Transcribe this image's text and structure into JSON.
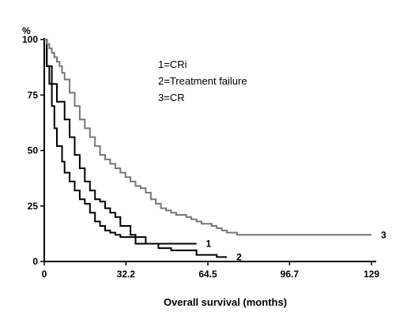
{
  "chart_data": {
    "type": "line",
    "title": "",
    "xlabel": "Overall survival (months)",
    "ylabel": "%",
    "xlim": [
      0,
      129
    ],
    "ylim": [
      0,
      100
    ],
    "x_ticks": [
      0,
      32.2,
      64.5,
      96.7,
      129
    ],
    "x_tick_labels": [
      "0",
      "32.2",
      "64.5",
      "96.7",
      "129"
    ],
    "y_ticks": [
      0,
      25,
      50,
      75,
      100
    ],
    "y_tick_labels": [
      "0",
      "25",
      "50",
      "75",
      "100"
    ],
    "grid": false,
    "legend_position": "top-right",
    "legend": [
      "1=CRi",
      "2=Treatment failure",
      "3=CR"
    ],
    "series": [
      {
        "name": "1",
        "label": "1",
        "color": "#000000",
        "x": [
          0,
          1,
          2,
          3,
          4,
          5,
          7,
          8,
          10,
          12,
          14,
          16,
          18,
          20,
          22,
          24,
          26,
          28,
          30,
          32,
          36,
          40,
          45,
          50,
          55,
          60
        ],
        "y": [
          100,
          88,
          80,
          70,
          60,
          52,
          45,
          40,
          36,
          32,
          28,
          26,
          22,
          18,
          16,
          14,
          13,
          12,
          11,
          11,
          11,
          8,
          8,
          8,
          8,
          8
        ]
      },
      {
        "name": "2",
        "label": "2",
        "color": "#000000",
        "x": [
          0,
          1,
          3,
          5,
          8,
          10,
          12,
          14,
          16,
          18,
          20,
          22,
          24,
          26,
          28,
          30,
          32,
          34,
          36,
          38,
          40,
          45,
          50,
          55,
          60,
          64,
          68,
          72
        ],
        "y": [
          100,
          88,
          80,
          72,
          64,
          56,
          48,
          42,
          36,
          32,
          28,
          27,
          24,
          22,
          20,
          16,
          16,
          12,
          8,
          8,
          8,
          6,
          5,
          5,
          3,
          3,
          2,
          2
        ]
      },
      {
        "name": "3",
        "label": "3",
        "color": "#777777",
        "x": [
          0,
          1,
          2,
          3,
          4,
          5,
          6,
          7,
          8,
          10,
          12,
          14,
          16,
          18,
          20,
          22,
          24,
          26,
          28,
          30,
          32,
          34,
          36,
          38,
          40,
          42,
          44,
          46,
          48,
          50,
          52,
          54,
          56,
          58,
          60,
          62,
          64,
          66,
          68,
          70,
          72,
          74,
          76,
          80,
          90,
          100,
          110,
          120,
          129
        ],
        "y": [
          100,
          98,
          96,
          94,
          92,
          90,
          88,
          85,
          82,
          76,
          70,
          64,
          60,
          56,
          52,
          48,
          46,
          44,
          42,
          40,
          38,
          36,
          34,
          33,
          31,
          28,
          26,
          24,
          23,
          22,
          21,
          21,
          20,
          19,
          18,
          17,
          17,
          16,
          15,
          14,
          13,
          13,
          12,
          12,
          12,
          12,
          12,
          12,
          12
        ]
      }
    ]
  }
}
